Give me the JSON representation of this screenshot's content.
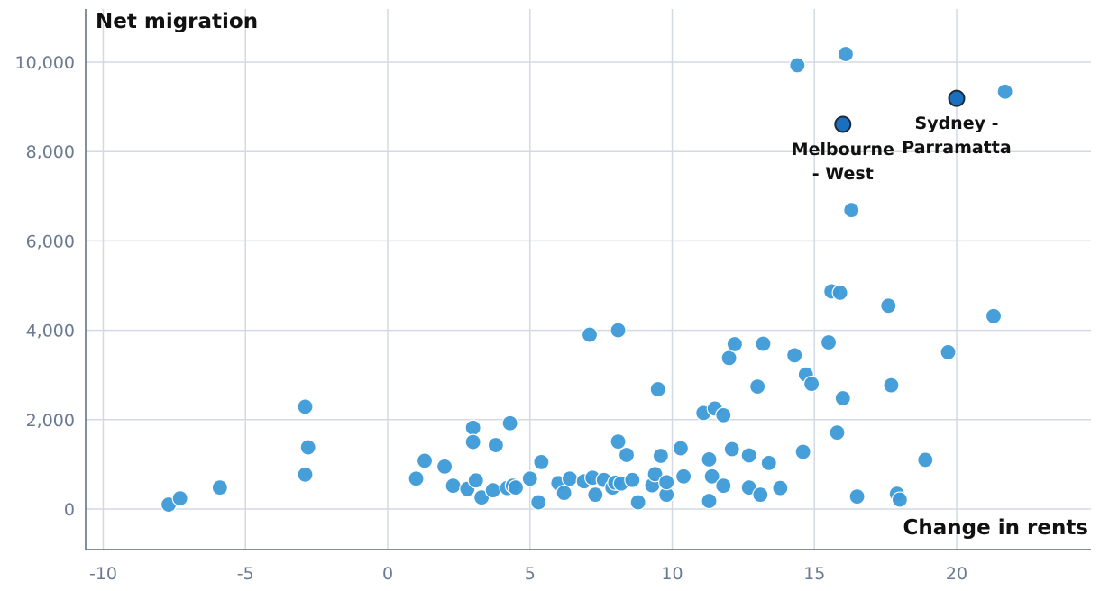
{
  "chart_data": {
    "type": "scatter",
    "xlabel": "Change in rents",
    "ylabel": "Net migration",
    "xlim": [
      -10.5,
      24.5
    ],
    "ylim": [
      -900,
      11300
    ],
    "x_ticks": [
      -10,
      -5,
      0,
      5,
      10,
      15,
      20
    ],
    "x_tick_labels": [
      "-10",
      "-5",
      "0",
      "5",
      "10",
      "15",
      "20"
    ],
    "y_ticks": [
      0,
      2000,
      4000,
      6000,
      8000,
      10000
    ],
    "y_tick_labels": [
      "0",
      "2,000",
      "4,000",
      "6,000",
      "8,000",
      "10,000"
    ],
    "grid": true,
    "colors": {
      "point": "#3d9ad8",
      "highlight": "#1a6fbf",
      "highlight_stroke": "#1b2a3a",
      "grid": "#d3d9e3",
      "axis": "#5a6a80"
    },
    "points": [
      {
        "x": -7.7,
        "y": 100
      },
      {
        "x": -7.3,
        "y": 240
      },
      {
        "x": -5.9,
        "y": 480
      },
      {
        "x": -2.9,
        "y": 2290
      },
      {
        "x": -2.8,
        "y": 1380
      },
      {
        "x": -2.9,
        "y": 770
      },
      {
        "x": 1.0,
        "y": 680
      },
      {
        "x": 1.3,
        "y": 1080
      },
      {
        "x": 2.0,
        "y": 950
      },
      {
        "x": 2.3,
        "y": 520
      },
      {
        "x": 2.8,
        "y": 450
      },
      {
        "x": 3.0,
        "y": 1820
      },
      {
        "x": 3.0,
        "y": 1500
      },
      {
        "x": 3.1,
        "y": 640
      },
      {
        "x": 3.3,
        "y": 260
      },
      {
        "x": 3.7,
        "y": 420
      },
      {
        "x": 3.8,
        "y": 1430
      },
      {
        "x": 4.2,
        "y": 470
      },
      {
        "x": 4.3,
        "y": 1920
      },
      {
        "x": 4.4,
        "y": 520
      },
      {
        "x": 4.5,
        "y": 480
      },
      {
        "x": 5.0,
        "y": 680
      },
      {
        "x": 5.3,
        "y": 150
      },
      {
        "x": 5.4,
        "y": 1050
      },
      {
        "x": 6.0,
        "y": 580
      },
      {
        "x": 6.2,
        "y": 360
      },
      {
        "x": 6.4,
        "y": 680
      },
      {
        "x": 6.9,
        "y": 620
      },
      {
        "x": 7.1,
        "y": 3900
      },
      {
        "x": 7.2,
        "y": 700
      },
      {
        "x": 7.3,
        "y": 320
      },
      {
        "x": 7.6,
        "y": 650
      },
      {
        "x": 7.9,
        "y": 480
      },
      {
        "x": 8.0,
        "y": 590
      },
      {
        "x": 8.1,
        "y": 4000
      },
      {
        "x": 8.1,
        "y": 1510
      },
      {
        "x": 8.2,
        "y": 570
      },
      {
        "x": 8.4,
        "y": 1210
      },
      {
        "x": 8.6,
        "y": 650
      },
      {
        "x": 8.8,
        "y": 150
      },
      {
        "x": 9.3,
        "y": 530
      },
      {
        "x": 9.4,
        "y": 780
      },
      {
        "x": 9.5,
        "y": 2680
      },
      {
        "x": 9.6,
        "y": 1190
      },
      {
        "x": 9.8,
        "y": 320
      },
      {
        "x": 9.8,
        "y": 600
      },
      {
        "x": 10.3,
        "y": 1360
      },
      {
        "x": 10.4,
        "y": 730
      },
      {
        "x": 11.1,
        "y": 2150
      },
      {
        "x": 11.3,
        "y": 1110
      },
      {
        "x": 11.3,
        "y": 180
      },
      {
        "x": 11.4,
        "y": 730
      },
      {
        "x": 11.5,
        "y": 2250
      },
      {
        "x": 11.8,
        "y": 2100
      },
      {
        "x": 11.8,
        "y": 520
      },
      {
        "x": 12.0,
        "y": 3380
      },
      {
        "x": 12.1,
        "y": 1340
      },
      {
        "x": 12.2,
        "y": 3690
      },
      {
        "x": 12.7,
        "y": 1200
      },
      {
        "x": 12.7,
        "y": 480
      },
      {
        "x": 13.0,
        "y": 2740
      },
      {
        "x": 13.1,
        "y": 320
      },
      {
        "x": 13.2,
        "y": 3700
      },
      {
        "x": 13.4,
        "y": 1030
      },
      {
        "x": 13.8,
        "y": 470
      },
      {
        "x": 14.3,
        "y": 3440
      },
      {
        "x": 14.4,
        "y": 9930
      },
      {
        "x": 14.6,
        "y": 1280
      },
      {
        "x": 14.7,
        "y": 3010
      },
      {
        "x": 14.9,
        "y": 2800
      },
      {
        "x": 15.5,
        "y": 3730
      },
      {
        "x": 15.6,
        "y": 4870
      },
      {
        "x": 15.8,
        "y": 1710
      },
      {
        "x": 15.9,
        "y": 4840
      },
      {
        "x": 16.0,
        "y": 2480
      },
      {
        "x": 16.1,
        "y": 10180
      },
      {
        "x": 16.3,
        "y": 6690
      },
      {
        "x": 16.5,
        "y": 280
      },
      {
        "x": 17.6,
        "y": 4550
      },
      {
        "x": 17.7,
        "y": 2770
      },
      {
        "x": 17.9,
        "y": 340
      },
      {
        "x": 18.0,
        "y": 210
      },
      {
        "x": 18.9,
        "y": 1100
      },
      {
        "x": 19.7,
        "y": 3510
      },
      {
        "x": 21.3,
        "y": 4320
      },
      {
        "x": 21.7,
        "y": 9340
      }
    ],
    "highlights": [
      {
        "x": 16.0,
        "y": 8610,
        "label_lines": [
          "Melbourne",
          "- West"
        ]
      },
      {
        "x": 20.0,
        "y": 9190,
        "label_lines": [
          "Sydney -",
          "Parramatta"
        ]
      }
    ]
  }
}
